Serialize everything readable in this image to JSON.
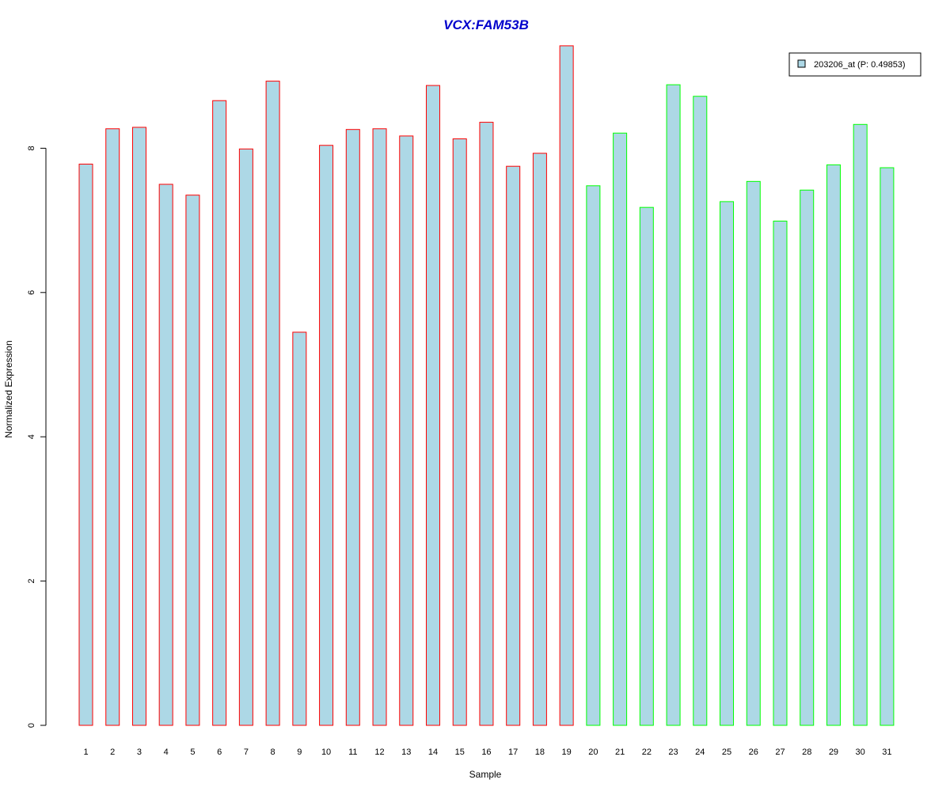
{
  "chart_data": {
    "type": "bar",
    "title": "VCX:FAM53B",
    "xlabel": "Sample",
    "ylabel": "Normalized Expression",
    "ylim": [
      0,
      9.4
    ],
    "y_ticks": [
      "0",
      "2",
      "4",
      "6",
      "8"
    ],
    "categories": [
      "1",
      "2",
      "3",
      "4",
      "5",
      "6",
      "7",
      "8",
      "9",
      "10",
      "11",
      "12",
      "13",
      "14",
      "15",
      "16",
      "17",
      "18",
      "19",
      "20",
      "21",
      "22",
      "23",
      "24",
      "25",
      "26",
      "27",
      "28",
      "29",
      "30",
      "31"
    ],
    "series": [
      {
        "name": "203206_at (P: 0.49853)",
        "values": [
          7.78,
          8.27,
          8.29,
          7.5,
          7.35,
          8.66,
          7.99,
          8.93,
          5.45,
          8.04,
          8.26,
          8.27,
          8.17,
          8.87,
          8.13,
          8.36,
          7.75,
          7.93,
          9.42,
          7.48,
          8.21,
          7.18,
          8.88,
          8.72,
          7.26,
          7.54,
          6.99,
          7.42,
          7.77,
          8.33,
          7.73
        ]
      }
    ],
    "group_colors": [
      "#ff0000",
      "#ff0000",
      "#ff0000",
      "#ff0000",
      "#ff0000",
      "#ff0000",
      "#ff0000",
      "#ff0000",
      "#ff0000",
      "#ff0000",
      "#ff0000",
      "#ff0000",
      "#ff0000",
      "#ff0000",
      "#ff0000",
      "#ff0000",
      "#ff0000",
      "#ff0000",
      "#ff0000",
      "#00ff00",
      "#00ff00",
      "#00ff00",
      "#00ff00",
      "#00ff00",
      "#00ff00",
      "#00ff00",
      "#00ff00",
      "#00ff00",
      "#00ff00",
      "#00ff00",
      "#00ff00"
    ],
    "bar_fill": "#add8e6",
    "title_color": "#0000cc",
    "legend": {
      "label": "203206_at (P: 0.49853)",
      "position": "top-right"
    },
    "grid": false
  }
}
